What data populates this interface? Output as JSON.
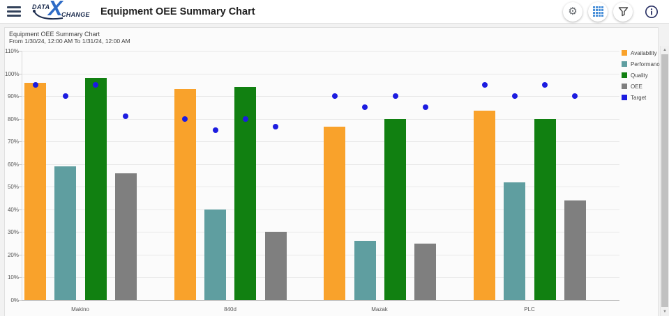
{
  "header": {
    "title": "Equipment OEE Summary Chart",
    "logo": {
      "data": "DATA",
      "x": "X",
      "change": "CHANGE"
    },
    "actions": {
      "settings_icon": "gear-icon",
      "grid_view_icon": "grid-icon",
      "filter_icon": "funnel-icon",
      "info_icon": "info-circle-icon"
    }
  },
  "colors": {
    "availability": "#F9A22B",
    "performance": "#5F9EA0",
    "quality": "#118011",
    "oee": "#7F7F7F",
    "target": "#1C1CE0",
    "grid_icon_blue": "#4A90D9",
    "info_icon_navy": "#242B60"
  },
  "chart_data": {
    "type": "bar",
    "title": "Equipment OEE Summary Chart",
    "subtitle": "From 1/30/24, 12:00 AM To 1/31/24, 12:00 AM",
    "categories": [
      "Makino",
      "840d",
      "Mazak",
      "PLC"
    ],
    "series": [
      {
        "name": "Availability",
        "kind": "bar",
        "color": "#F9A22B",
        "values": [
          96,
          93,
          76.5,
          83.5
        ]
      },
      {
        "name": "Performance",
        "kind": "bar",
        "color": "#5F9EA0",
        "values": [
          59,
          40,
          26,
          52
        ]
      },
      {
        "name": "Quality",
        "kind": "bar",
        "color": "#118011",
        "values": [
          98,
          94,
          80,
          80
        ]
      },
      {
        "name": "OEE",
        "kind": "bar",
        "color": "#7F7F7F",
        "values": [
          56,
          30,
          25,
          44
        ]
      },
      {
        "name": "Target",
        "kind": "point",
        "color": "#1C1CE0",
        "values_per_category": [
          [
            95,
            90,
            95,
            81
          ],
          [
            80,
            75,
            80,
            76.5
          ],
          [
            90,
            85,
            90,
            85
          ],
          [
            95,
            90,
            95,
            90
          ]
        ]
      }
    ],
    "y_axis": {
      "min": 0,
      "max": 110,
      "step": 10,
      "tick_labels": [
        "0%",
        "10%",
        "20%",
        "30%",
        "40%",
        "50%",
        "60%",
        "70%",
        "80%",
        "90%",
        "100%",
        "110%"
      ]
    },
    "grid": true,
    "legend_position": "right-top",
    "legend": [
      "Availability",
      "Performance",
      "Quality",
      "OEE",
      "Target"
    ]
  },
  "scrollbar": {
    "up_glyph": "▲",
    "down_glyph": "▼"
  }
}
